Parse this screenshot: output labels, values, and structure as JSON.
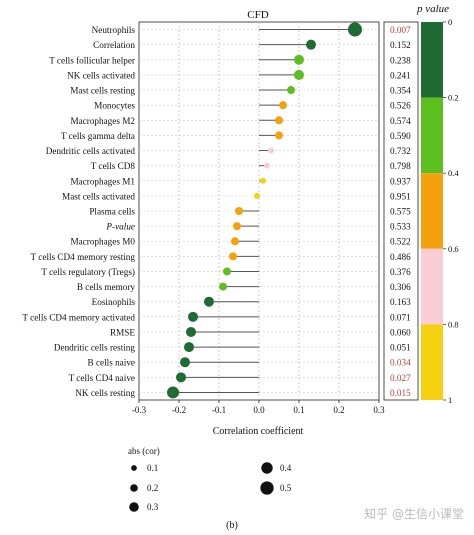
{
  "chart_data": {
    "type": "scatter",
    "title": "CFD",
    "xlabel": "Correlation coefficient",
    "xlim": [
      -0.3,
      0.3
    ],
    "xticks": [
      "-0.3",
      "-0.2",
      "-0.1",
      "0.0",
      "0.1",
      "0.2",
      "0.3"
    ],
    "grid": true,
    "categories": [
      "Neutrophils",
      "Correlation",
      "T cells follicular helper",
      "NK cells activated",
      "Mast cells resting",
      "Monocytes",
      "Macrophages M2",
      "T cells gamma delta",
      "Dendritic cells activated",
      "T cells CD8",
      "Macrophages M1",
      "Mast cells activated",
      "Plasma cells",
      "P-value",
      "Macrophages M0",
      "T cells CD4 memory resting",
      "T cells regulatory (Tregs)",
      "B cells memory",
      "Eosinophils",
      "T cells CD4 memory activated",
      "RMSE",
      "Dendritic cells resting",
      "B cells naive",
      "T cells CD4 naive",
      "NK cells resting"
    ],
    "values": [
      0.24,
      0.13,
      0.1,
      0.1,
      0.08,
      0.06,
      0.05,
      0.05,
      0.03,
      0.02,
      0.01,
      -0.005,
      -0.05,
      -0.055,
      -0.06,
      -0.065,
      -0.08,
      -0.09,
      -0.125,
      -0.165,
      -0.17,
      -0.175,
      -0.185,
      -0.195,
      -0.215
    ],
    "abs_cor_size": [
      0.5,
      0.3,
      0.3,
      0.3,
      0.2,
      0.2,
      0.2,
      0.2,
      0.1,
      0.1,
      0.1,
      0.1,
      0.2,
      0.2,
      0.2,
      0.2,
      0.2,
      0.2,
      0.3,
      0.3,
      0.3,
      0.3,
      0.3,
      0.3,
      0.4
    ],
    "p_values": [
      "0.007",
      "0.152",
      "0.238",
      "0.241",
      "0.354",
      "0.526",
      "0.574",
      "0.590",
      "0.732",
      "0.798",
      "0.937",
      "0.951",
      "0.575",
      "0.533",
      "0.522",
      "0.486",
      "0.376",
      "0.306",
      "0.163",
      "0.071",
      "0.060",
      "0.051",
      "0.034",
      "0.027",
      "0.015"
    ],
    "colorbar": {
      "title": "p value",
      "labels": [
        "0",
        "0.2",
        "0.4",
        "0.6",
        "0.8",
        "1"
      ],
      "colors": [
        "#1e6b33",
        "#5cbf1f",
        "#f4a10c",
        "#f8cdd6",
        "#f6d10f"
      ]
    },
    "legend": {
      "title": "abs (cor)",
      "items": [
        "0.1",
        "0.2",
        "0.3",
        "0.4",
        "0.5"
      ],
      "sizes": [
        0.1,
        0.2,
        0.3,
        0.4,
        0.5
      ]
    },
    "caption": "(b)",
    "colors": {
      "significant_text": "#b5413a",
      "normal_text": "#111111",
      "segment": "#555555"
    }
  },
  "watermark": "知乎 @生信小课堂"
}
